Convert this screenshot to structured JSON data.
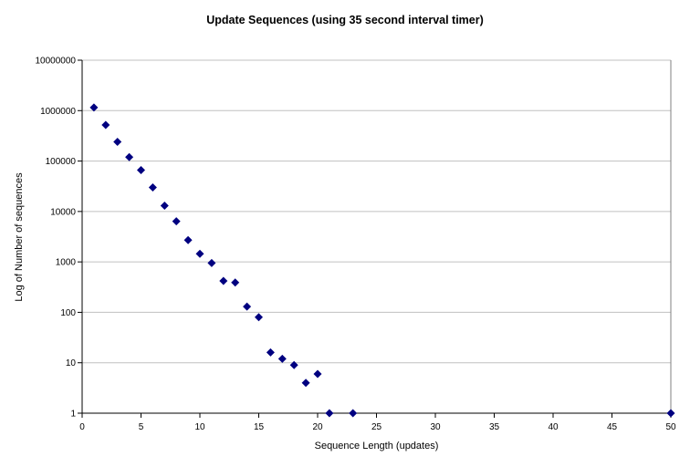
{
  "chart_data": {
    "type": "scatter",
    "title": "Update Sequences (using 35 second interval timer)",
    "xlabel": "Sequence Length (updates)",
    "ylabel": "Log of Number of sequences",
    "y_scale": "log",
    "xlim": [
      0,
      50
    ],
    "ylim": [
      1,
      10000000
    ],
    "x_ticks": [
      0,
      5,
      10,
      15,
      20,
      25,
      30,
      35,
      40,
      45,
      50
    ],
    "y_ticks": [
      1,
      10,
      100,
      1000,
      10000,
      100000,
      1000000,
      10000000
    ],
    "grid": "horizontal-decades",
    "legend": "none",
    "marker": {
      "shape": "diamond",
      "color": "#000080",
      "size": 9
    },
    "colors": {
      "background": "#ffffff",
      "gridline": "#c0c0c0",
      "axis": "#000000",
      "plot_right_border": "#808080",
      "text": "#000000"
    },
    "points": [
      {
        "x": 1,
        "y": 1150000
      },
      {
        "x": 2,
        "y": 520000
      },
      {
        "x": 3,
        "y": 240000
      },
      {
        "x": 4,
        "y": 120000
      },
      {
        "x": 5,
        "y": 66000
      },
      {
        "x": 6,
        "y": 30000
      },
      {
        "x": 7,
        "y": 13000
      },
      {
        "x": 8,
        "y": 6400
      },
      {
        "x": 9,
        "y": 2700
      },
      {
        "x": 10,
        "y": 1450
      },
      {
        "x": 11,
        "y": 950
      },
      {
        "x": 12,
        "y": 420
      },
      {
        "x": 13,
        "y": 390
      },
      {
        "x": 14,
        "y": 130
      },
      {
        "x": 15,
        "y": 80
      },
      {
        "x": 16,
        "y": 16
      },
      {
        "x": 17,
        "y": 12
      },
      {
        "x": 18,
        "y": 9
      },
      {
        "x": 19,
        "y": 4
      },
      {
        "x": 20,
        "y": 6
      },
      {
        "x": 21,
        "y": 1
      },
      {
        "x": 23,
        "y": 1
      },
      {
        "x": 50,
        "y": 1
      }
    ]
  }
}
